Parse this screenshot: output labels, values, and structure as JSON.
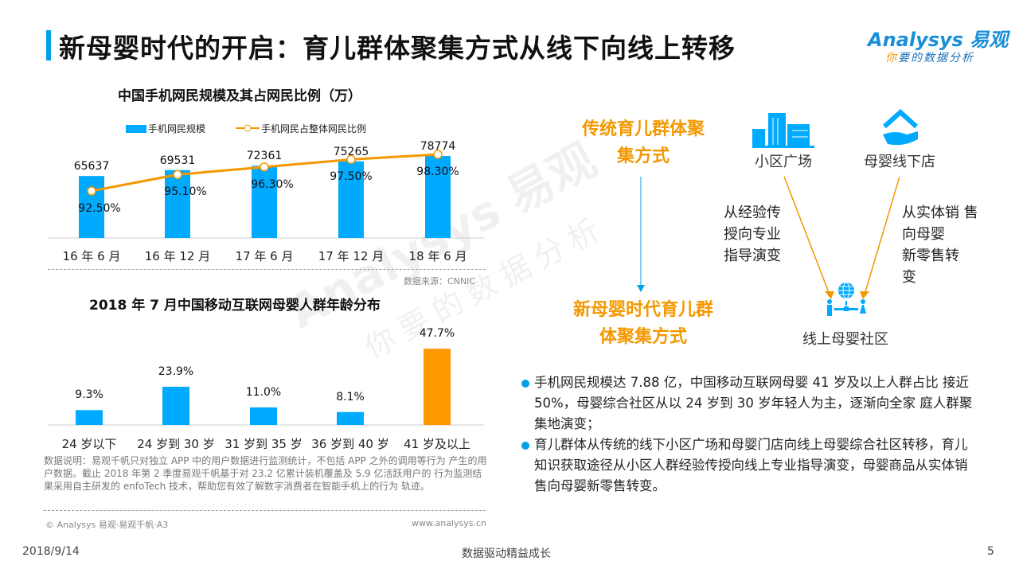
{
  "header": {
    "title": "新母婴时代的开启：育儿群体聚集方式从线下向线上转移",
    "logo_main": "Analysys 易观",
    "logo_sub_highlight": "你",
    "logo_sub": "要的数据分析"
  },
  "watermark": {
    "main": "Analysys 易观",
    "sub": "你要的数据分析"
  },
  "chart_data": [
    {
      "type": "bar+line",
      "title": "中国手机网民规模及其占网民比例（万）",
      "categories": [
        "16 年 6 月",
        "16 年 12 月",
        "17 年 6 月",
        "17 年 12 月",
        "18 年 6 月"
      ],
      "series": [
        {
          "name": "手机网民规模",
          "type": "bar",
          "values": [
            65637,
            69531,
            72361,
            75265,
            78774
          ],
          "labels": [
            "65637",
            "69531",
            "72361",
            "75265",
            "78774"
          ],
          "color": "#00aaff"
        },
        {
          "name": "手机网民占整体网民比例",
          "type": "line",
          "values": [
            92.5,
            95.1,
            96.3,
            97.5,
            98.3
          ],
          "labels": [
            "92.50%",
            "95.10%",
            "96.30%",
            "97.50%",
            "98.30%"
          ],
          "color": "#f39800"
        }
      ],
      "source": "数据来源：CNNIC"
    },
    {
      "type": "bar",
      "title": "2018 年 7 月中国移动互联网母婴人群年龄分布",
      "categories": [
        "24 岁以下",
        "24 岁到 30 岁",
        "31 岁到 35 岁",
        "36 岁到 40 岁",
        "41 岁及以上"
      ],
      "values": [
        9.3,
        23.9,
        11.0,
        8.1,
        47.7
      ],
      "labels": [
        "9.3%",
        "23.9%",
        "11.0%",
        "8.1%",
        "47.7%"
      ],
      "colors": [
        "#00aaff",
        "#00aaff",
        "#00aaff",
        "#00aaff",
        "#ff9900"
      ],
      "ylim": [
        0,
        50
      ]
    }
  ],
  "note": "数据说明：易观千帆只对独立 APP 中的用户数据进行监测统计，不包括 APP 之外的调用等行为 产生的用户数据。截止 2018 年第 2 季度易观千帆基于对 23.2 亿累计装机覆盖及 5.9 亿活跃用户的 行为监测结果采用自主研发的 enfoTech 技术，帮助您有效了解数字消费者在智能手机上的行为 轨迹。",
  "copyright": "© Analysys 易观·易观千帆·A3",
  "website": "www.analysys.cn",
  "diagram": {
    "traditional": "传统育儿群体聚集方式",
    "new": "新母婴时代育儿群体聚集方式",
    "node_square": "小区广场",
    "node_store": "母婴线下店",
    "node_online": "线上母婴社区",
    "left_desc": [
      "从经验传",
      "授向专业",
      "指导演变"
    ],
    "right_desc": [
      "从实体销 售",
      "向母婴",
      "新零售转",
      "变"
    ]
  },
  "bullets": [
    "手机网民规模达 7.88 亿，中国移动互联网母婴 41 岁及以上人群占比 接近 50%，母婴综合社区从以 24 岁到 30 岁年轻人为主，逐渐向全家 庭人群聚集地演变；",
    "育儿群体从传统的线下小区广场和母婴门店向线上母婴综合社区转移，育儿知识获取途径从小区人群经验传授向线上专业指导演变，母婴商品从实体销售向母婴新零售转变。"
  ],
  "footer": {
    "date": "2018/9/14",
    "slogan": "数据驱动精益成长",
    "page": "5"
  }
}
